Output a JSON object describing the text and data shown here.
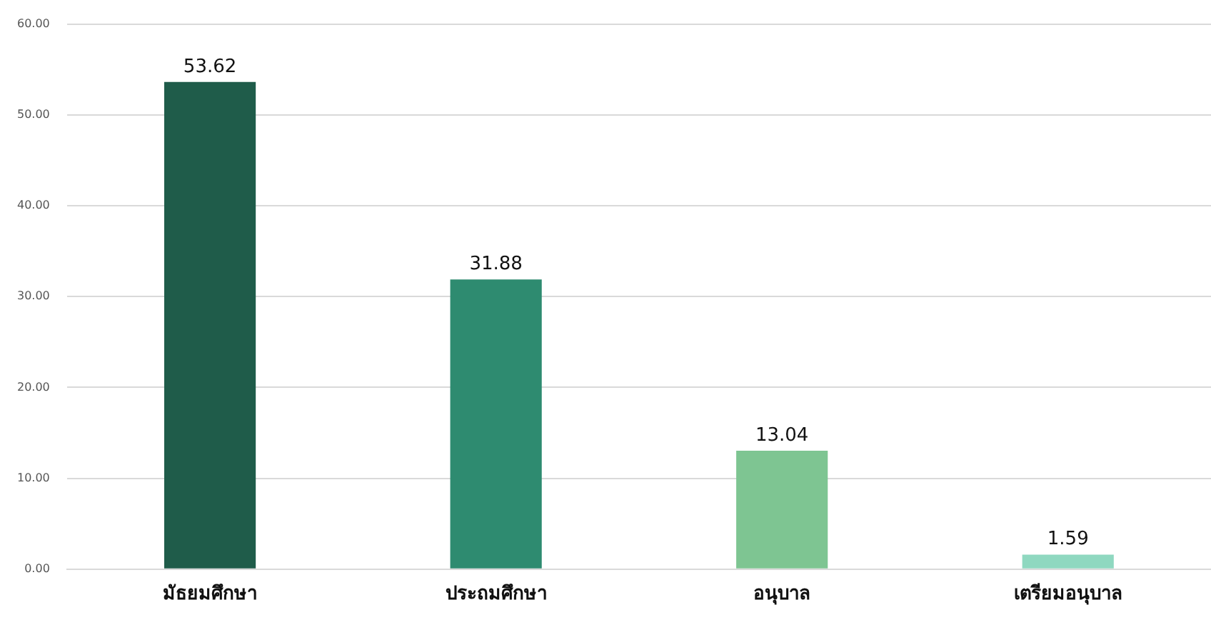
{
  "chart_data": {
    "type": "bar",
    "categories": [
      "มัธยมศึกษา",
      "ประถมศึกษา",
      "อนุบาล",
      "เตรียมอนุบาล"
    ],
    "values": [
      53.62,
      31.88,
      13.04,
      1.59
    ],
    "colors": [
      "#1f5c4a",
      "#2e8b70",
      "#7ec592",
      "#8fd8c0"
    ],
    "ylim": [
      0,
      60
    ],
    "yticks": [
      {
        "value": 0,
        "label": "0.00"
      },
      {
        "value": 10,
        "label": "10.00"
      },
      {
        "value": 20,
        "label": "20.00"
      },
      {
        "value": 30,
        "label": "30.00"
      },
      {
        "value": 40,
        "label": "40.00"
      },
      {
        "value": 50,
        "label": "50.00"
      },
      {
        "value": 60,
        "label": "60.00"
      }
    ],
    "grid": "y",
    "data_labels": true,
    "legend": false
  }
}
